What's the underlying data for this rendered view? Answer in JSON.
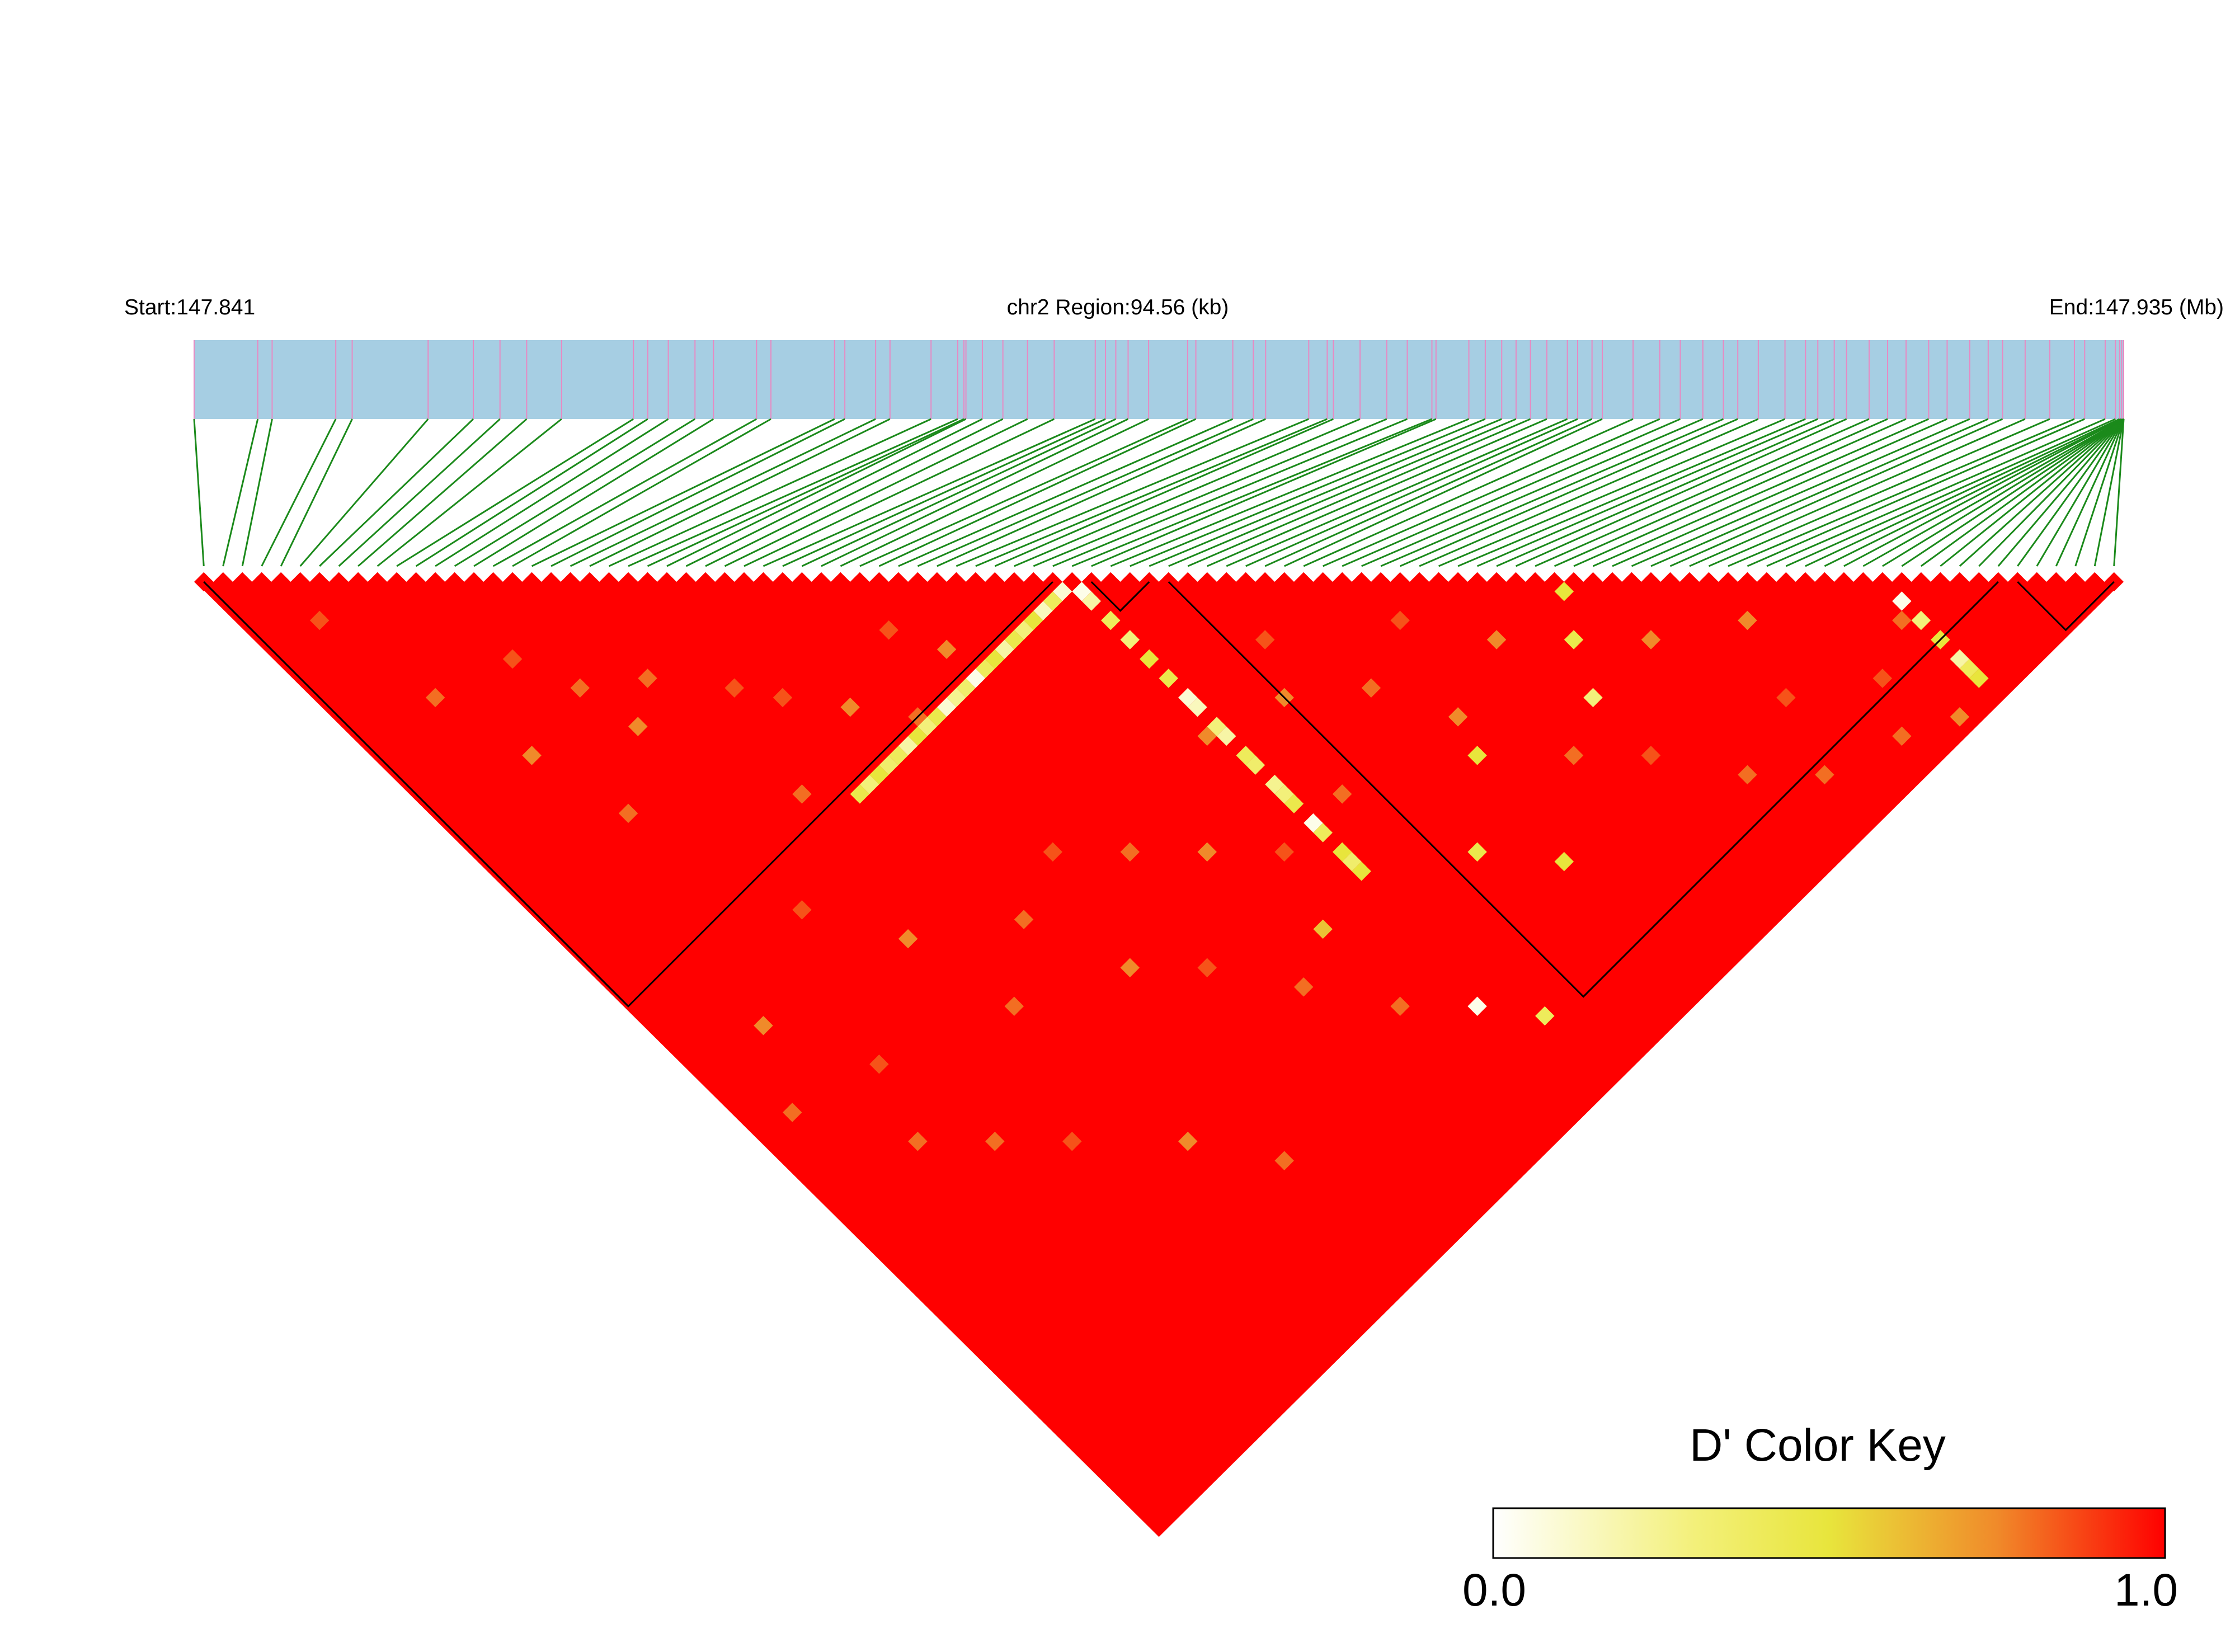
{
  "header": {
    "start_label": "Start:147.841",
    "region_label": "chr2 Region:94.56 (kb)",
    "end_label": "End:147.935 (Mb)"
  },
  "color_key": {
    "title": "D' Color Key",
    "min_label": "0.0",
    "max_label": "1.0",
    "gradient_stops": [
      "#ffffff",
      "#f3f07a",
      "#e8e53c",
      "#f08a2a",
      "#ff0000"
    ]
  },
  "colors": {
    "track": "#a6cee3",
    "snp_tick": "#e78ac3",
    "connector": "#1b8a1b",
    "ld_high": "#ff0000",
    "block_outline": "#000000"
  },
  "chart_data": {
    "type": "heatmap",
    "chromosome": "chr2",
    "region_start_mb": 147.841,
    "region_end_mb": 147.935,
    "region_length_kb": 94.56,
    "n_snps": 100,
    "snp_positions_mb": [
      147.841,
      147.8441,
      147.8448,
      147.8479,
      147.8487,
      147.8524,
      147.8546,
      147.8559,
      147.8572,
      147.8589,
      147.8624,
      147.8631,
      147.8641,
      147.8654,
      147.8663,
      147.8684,
      147.8691,
      147.8722,
      147.8727,
      147.8742,
      147.8749,
      147.8769,
      147.8782,
      147.8785,
      147.8786,
      147.8794,
      147.8804,
      147.8816,
      147.8829,
      147.8849,
      147.8854,
      147.8859,
      147.8865,
      147.8875,
      147.8894,
      147.8898,
      147.8916,
      147.8926,
      147.8932,
      147.8953,
      147.8962,
      147.8965,
      147.8978,
      147.8991,
      147.9001,
      147.9013,
      147.9015,
      147.9031,
      147.9039,
      147.9047,
      147.9054,
      147.9061,
      147.9069,
      147.9079,
      147.9084,
      147.9091,
      147.9096,
      147.9111,
      147.9124,
      147.9134,
      147.9145,
      147.9155,
      147.9162,
      147.9172,
      147.9185,
      147.9195,
      147.9201,
      147.9209,
      147.9215,
      147.9226,
      147.9235,
      147.9244,
      147.9255,
      147.9264,
      147.9275,
      147.9284,
      147.9291,
      147.9302,
      147.9314,
      147.9326,
      147.9331,
      147.9341,
      147.9346,
      147.9348,
      147.9349,
      147.9349,
      147.935,
      147.935,
      147.935,
      147.935,
      147.935,
      147.935,
      147.935,
      147.935,
      147.935,
      147.935,
      147.935,
      147.935,
      147.935,
      147.935
    ],
    "value_name": "D'",
    "value_range": [
      0,
      1
    ],
    "default_value": 1.0,
    "notable_pairs": [
      {
        "i": 44,
        "j": 45,
        "value": 0.1
      },
      {
        "i": 43,
        "j": 45,
        "value": 0.4
      },
      {
        "i": 42,
        "j": 45,
        "value": 0.15
      },
      {
        "i": 41,
        "j": 45,
        "value": 0.5
      },
      {
        "i": 40,
        "j": 45,
        "value": 0.3
      },
      {
        "i": 39,
        "j": 45,
        "value": 0.45
      },
      {
        "i": 38,
        "j": 45,
        "value": 0.2
      },
      {
        "i": 37,
        "j": 45,
        "value": 0.5
      },
      {
        "i": 36,
        "j": 45,
        "value": 0.4
      },
      {
        "i": 35,
        "j": 45,
        "value": 0.05
      },
      {
        "i": 34,
        "j": 45,
        "value": 0.35
      },
      {
        "i": 33,
        "j": 45,
        "value": 0.25
      },
      {
        "i": 32,
        "j": 45,
        "value": 0.1
      },
      {
        "i": 31,
        "j": 45,
        "value": 0.45
      },
      {
        "i": 30,
        "j": 45,
        "value": 0.3
      },
      {
        "i": 29,
        "j": 45,
        "value": 0.5
      },
      {
        "i": 28,
        "j": 45,
        "value": 0.2
      },
      {
        "i": 27,
        "j": 45,
        "value": 0.4
      },
      {
        "i": 26,
        "j": 45,
        "value": 0.35
      },
      {
        "i": 25,
        "j": 45,
        "value": 0.5
      },
      {
        "i": 24,
        "j": 45,
        "value": 0.3
      },
      {
        "i": 23,
        "j": 45,
        "value": 0.45
      },
      {
        "i": 45,
        "j": 46,
        "value": 0.05
      },
      {
        "i": 45,
        "j": 47,
        "value": 0.2
      },
      {
        "i": 45,
        "j": 49,
        "value": 0.4
      },
      {
        "i": 45,
        "j": 51,
        "value": 0.3
      },
      {
        "i": 45,
        "j": 53,
        "value": 0.5
      },
      {
        "i": 45,
        "j": 55,
        "value": 0.45
      },
      {
        "i": 45,
        "j": 57,
        "value": 0.1
      },
      {
        "i": 45,
        "j": 58,
        "value": 0.15
      },
      {
        "i": 45,
        "j": 60,
        "value": 0.3
      },
      {
        "i": 45,
        "j": 61,
        "value": 0.2
      },
      {
        "i": 45,
        "j": 63,
        "value": 0.4
      },
      {
        "i": 45,
        "j": 64,
        "value": 0.35
      },
      {
        "i": 45,
        "j": 66,
        "value": 0.25
      },
      {
        "i": 45,
        "j": 67,
        "value": 0.3
      },
      {
        "i": 45,
        "j": 68,
        "value": 0.45
      },
      {
        "i": 45,
        "j": 70,
        "value": 0.05
      },
      {
        "i": 45,
        "j": 71,
        "value": 0.4
      },
      {
        "i": 45,
        "j": 73,
        "value": 0.5
      },
      {
        "i": 45,
        "j": 74,
        "value": 0.35
      },
      {
        "i": 45,
        "j": 75,
        "value": 0.5
      },
      {
        "i": 87,
        "j": 89,
        "value": 0.05
      },
      {
        "i": 87,
        "j": 91,
        "value": 0.3
      },
      {
        "i": 87,
        "j": 93,
        "value": 0.5
      },
      {
        "i": 87,
        "j": 95,
        "value": 0.2
      },
      {
        "i": 87,
        "j": 96,
        "value": 0.4
      },
      {
        "i": 87,
        "j": 97,
        "value": 0.5
      },
      {
        "i": 68,
        "j": 74,
        "value": 0.45
      },
      {
        "i": 70,
        "j": 71,
        "value": 0.5
      },
      {
        "i": 66,
        "j": 78,
        "value": 0.3
      },
      {
        "i": 47,
        "j": 92,
        "value": 0.4
      },
      {
        "i": 56,
        "j": 85,
        "value": 0.5
      },
      {
        "i": 44,
        "j": 88,
        "value": 0.05
      },
      {
        "i": 40,
        "j": 76,
        "value": 0.6
      },
      {
        "i": 57,
        "j": 75,
        "value": 0.5
      },
      {
        "i": 52,
        "j": 80,
        "value": 0.45
      }
    ],
    "medium_pairs": [
      {
        "i": 4,
        "j": 8,
        "value": 0.85
      },
      {
        "i": 6,
        "j": 18,
        "value": 0.8
      },
      {
        "i": 8,
        "j": 26,
        "value": 0.75
      },
      {
        "i": 12,
        "j": 20,
        "value": 0.85
      },
      {
        "i": 15,
        "j": 30,
        "value": 0.75
      },
      {
        "i": 18,
        "j": 28,
        "value": 0.8
      },
      {
        "i": 20,
        "j": 42,
        "value": 0.8
      },
      {
        "i": 24,
        "j": 36,
        "value": 0.85
      },
      {
        "i": 27,
        "j": 40,
        "value": 0.75
      },
      {
        "i": 30,
        "j": 44,
        "value": 0.8
      },
      {
        "i": 33,
        "j": 38,
        "value": 0.85
      },
      {
        "i": 35,
        "j": 42,
        "value": 0.75
      },
      {
        "i": 10,
        "j": 34,
        "value": 0.8
      },
      {
        "i": 22,
        "j": 33,
        "value": 0.85
      },
      {
        "i": 14,
        "j": 25,
        "value": 0.8
      },
      {
        "i": 48,
        "j": 70,
        "value": 0.8
      },
      {
        "i": 50,
        "j": 62,
        "value": 0.75
      },
      {
        "i": 52,
        "j": 58,
        "value": 0.85
      },
      {
        "i": 55,
        "j": 66,
        "value": 0.8
      },
      {
        "i": 58,
        "j": 72,
        "value": 0.75
      },
      {
        "i": 60,
        "j": 64,
        "value": 0.85
      },
      {
        "i": 62,
        "j": 80,
        "value": 0.8
      },
      {
        "i": 64,
        "j": 70,
        "value": 0.75
      },
      {
        "i": 66,
        "j": 84,
        "value": 0.85
      },
      {
        "i": 70,
        "j": 90,
        "value": 0.8
      },
      {
        "i": 72,
        "j": 78,
        "value": 0.75
      },
      {
        "i": 74,
        "j": 94,
        "value": 0.8
      },
      {
        "i": 76,
        "j": 88,
        "value": 0.85
      },
      {
        "i": 78,
        "j": 82,
        "value": 0.75
      },
      {
        "i": 80,
        "j": 96,
        "value": 0.8
      },
      {
        "i": 82,
        "j": 92,
        "value": 0.85
      },
      {
        "i": 84,
        "j": 98,
        "value": 0.75
      },
      {
        "i": 86,
        "j": 90,
        "value": 0.8
      },
      {
        "i": 25,
        "j": 60,
        "value": 0.8
      },
      {
        "i": 28,
        "j": 68,
        "value": 0.75
      },
      {
        "i": 32,
        "j": 72,
        "value": 0.85
      },
      {
        "i": 36,
        "j": 78,
        "value": 0.8
      },
      {
        "i": 38,
        "j": 66,
        "value": 0.75
      },
      {
        "i": 40,
        "j": 84,
        "value": 0.8
      },
      {
        "i": 42,
        "j": 70,
        "value": 0.85
      },
      {
        "i": 20,
        "j": 64,
        "value": 0.8
      },
      {
        "i": 18,
        "j": 55,
        "value": 0.75
      },
      {
        "i": 30,
        "j": 58,
        "value": 0.85
      },
      {
        "i": 34,
        "j": 62,
        "value": 0.8
      },
      {
        "i": 44,
        "j": 60,
        "value": 0.75
      },
      {
        "i": 12,
        "j": 70,
        "value": 0.8
      },
      {
        "i": 16,
        "j": 74,
        "value": 0.85
      },
      {
        "i": 22,
        "j": 80,
        "value": 0.75
      },
      {
        "i": 26,
        "j": 86,
        "value": 0.8
      },
      {
        "i": 10,
        "j": 60,
        "value": 0.85
      },
      {
        "i": 8,
        "j": 66,
        "value": 0.8
      },
      {
        "i": 6,
        "j": 52,
        "value": 0.75
      },
      {
        "i": 14,
        "j": 48,
        "value": 0.85
      },
      {
        "i": 3,
        "j": 58,
        "value": 0.8
      }
    ],
    "blocks": [
      {
        "first_snp": 1,
        "last_snp": 45
      },
      {
        "first_snp": 47,
        "last_snp": 50
      },
      {
        "first_snp": 51,
        "last_snp": 94
      },
      {
        "first_snp": 95,
        "last_snp": 100
      }
    ]
  }
}
